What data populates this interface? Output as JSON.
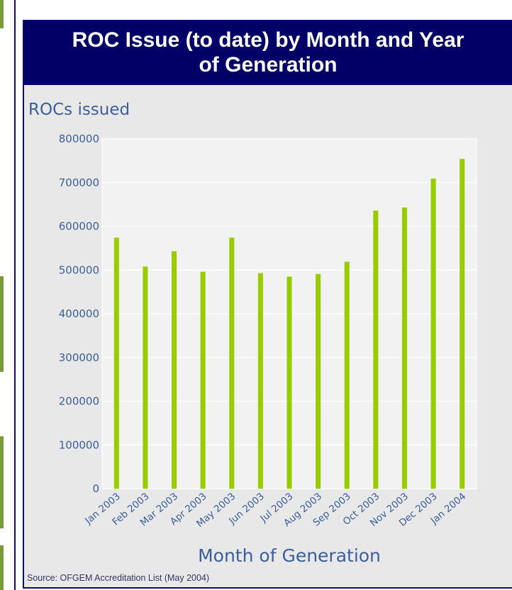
{
  "colors": {
    "header_bg": "#000066",
    "panel_bg": "#e8e8e8",
    "bar": "#99cc00",
    "text_blue": "#3a5f9a"
  },
  "chart_data": {
    "type": "bar",
    "title": "ROC Issue (to date) by Month and Year of Generation",
    "ylabel": "ROCs issued",
    "xlabel": "Month of Generation",
    "categories": [
      "Jan 2003",
      "Feb 2003",
      "Mar 2003",
      "Apr 2003",
      "May 2003",
      "Jun 2003",
      "Jul 2003",
      "Aug 2003",
      "Sep 2003",
      "Oct 2003",
      "Nov 2003",
      "Dec 2003",
      "Jan 2004"
    ],
    "values": [
      574000,
      508000,
      543000,
      496000,
      574000,
      493000,
      485000,
      491000,
      519000,
      636000,
      643000,
      709000,
      754000
    ],
    "ylim": [
      0,
      800000
    ],
    "yticks": [
      0,
      100000,
      200000,
      300000,
      400000,
      500000,
      600000,
      700000,
      800000
    ],
    "grid": true
  },
  "source": "Source: OFGEM Accreditation List (May 2004)"
}
